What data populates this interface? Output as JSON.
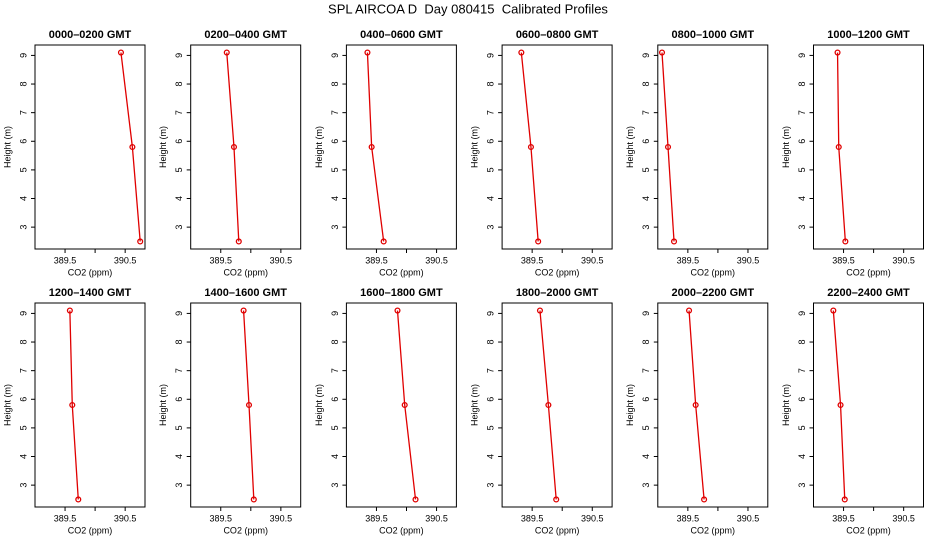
{
  "title": "SPL AIRCOA D  Day 080415  Calibrated Profiles",
  "chart_data": [
    {
      "type": "line",
      "title": "0000–0200 GMT",
      "xlabel": "CO2 (ppm)",
      "ylabel": "Height (m)",
      "x": [
        390.43,
        390.62,
        390.75
      ],
      "values": [
        9.1,
        5.8,
        2.5
      ],
      "color": "#e00000",
      "xlim": [
        389.0,
        390.83
      ],
      "ylim": [
        2.236,
        9.364
      ],
      "xticks": [
        389.5,
        {
          "value": 390.0,
          "label": null
        },
        390.5
      ],
      "yticks": [
        3,
        4,
        5,
        6,
        7,
        8,
        9
      ]
    },
    {
      "type": "line",
      "title": "0200–0400 GMT",
      "xlabel": "CO2 (ppm)",
      "ylabel": "Height (m)",
      "x": [
        389.6,
        389.72,
        389.8
      ],
      "values": [
        9.1,
        5.8,
        2.5
      ],
      "color": "#e00000",
      "xlim": [
        389.0,
        390.83
      ],
      "ylim": [
        2.236,
        9.364
      ],
      "xticks": [
        389.5,
        {
          "value": 390.0,
          "label": null
        },
        390.5
      ],
      "yticks": [
        3,
        4,
        5,
        6,
        7,
        8,
        9
      ]
    },
    {
      "type": "line",
      "title": "0400–0600 GMT",
      "xlabel": "CO2 (ppm)",
      "ylabel": "Height (m)",
      "x": [
        389.35,
        389.42,
        389.62
      ],
      "values": [
        9.1,
        5.8,
        2.5
      ],
      "color": "#e00000",
      "xlim": [
        389.0,
        390.83
      ],
      "ylim": [
        2.236,
        9.364
      ],
      "xticks": [
        389.5,
        {
          "value": 390.0,
          "label": null
        },
        390.5
      ],
      "yticks": [
        3,
        4,
        5,
        6,
        7,
        8,
        9
      ]
    },
    {
      "type": "line",
      "title": "0600–0800 GMT",
      "xlabel": "CO2 (ppm)",
      "ylabel": "Height (m)",
      "x": [
        389.32,
        389.48,
        389.6
      ],
      "values": [
        9.1,
        5.8,
        2.5
      ],
      "color": "#e00000",
      "xlim": [
        389.0,
        390.83
      ],
      "ylim": [
        2.236,
        9.364
      ],
      "xticks": [
        389.5,
        {
          "value": 390.0,
          "label": null
        },
        390.5
      ],
      "yticks": [
        3,
        4,
        5,
        6,
        7,
        8,
        9
      ]
    },
    {
      "type": "line",
      "title": "0800–1000 GMT",
      "xlabel": "CO2 (ppm)",
      "ylabel": "Height (m)",
      "x": [
        389.07,
        389.17,
        389.27
      ],
      "values": [
        9.1,
        5.8,
        2.5
      ],
      "color": "#e00000",
      "xlim": [
        389.0,
        390.83
      ],
      "ylim": [
        2.236,
        9.364
      ],
      "xticks": [
        389.5,
        {
          "value": 390.0,
          "label": null
        },
        390.5
      ],
      "yticks": [
        3,
        4,
        5,
        6,
        7,
        8,
        9
      ]
    },
    {
      "type": "line",
      "title": "1000–1200 GMT",
      "xlabel": "CO2 (ppm)",
      "ylabel": "Height (m)",
      "x": [
        389.4,
        389.42,
        389.53
      ],
      "values": [
        9.1,
        5.8,
        2.5
      ],
      "color": "#e00000",
      "xlim": [
        389.0,
        390.83
      ],
      "ylim": [
        2.236,
        9.364
      ],
      "xticks": [
        389.5,
        {
          "value": 390.0,
          "label": null
        },
        390.5
      ],
      "yticks": [
        3,
        4,
        5,
        6,
        7,
        8,
        9
      ]
    },
    {
      "type": "line",
      "title": "1200–1400 GMT",
      "xlabel": "CO2 (ppm)",
      "ylabel": "Height (m)",
      "x": [
        389.58,
        389.62,
        389.72
      ],
      "values": [
        9.1,
        5.8,
        2.5
      ],
      "color": "#e00000",
      "xlim": [
        389.0,
        390.83
      ],
      "ylim": [
        2.236,
        9.364
      ],
      "xticks": [
        389.5,
        {
          "value": 390.0,
          "label": null
        },
        390.5
      ],
      "yticks": [
        3,
        4,
        5,
        6,
        7,
        8,
        9
      ]
    },
    {
      "type": "line",
      "title": "1400–1600 GMT",
      "xlabel": "CO2 (ppm)",
      "ylabel": "Height (m)",
      "x": [
        389.88,
        389.97,
        390.05
      ],
      "values": [
        9.1,
        5.8,
        2.5
      ],
      "color": "#e00000",
      "xlim": [
        389.0,
        390.83
      ],
      "ylim": [
        2.236,
        9.364
      ],
      "xticks": [
        389.5,
        {
          "value": 390.0,
          "label": null
        },
        390.5
      ],
      "yticks": [
        3,
        4,
        5,
        6,
        7,
        8,
        9
      ]
    },
    {
      "type": "line",
      "title": "1600–1800 GMT",
      "xlabel": "CO2 (ppm)",
      "ylabel": "Height (m)",
      "x": [
        389.85,
        389.97,
        390.15
      ],
      "values": [
        9.1,
        5.8,
        2.5
      ],
      "color": "#e00000",
      "xlim": [
        389.0,
        390.83
      ],
      "ylim": [
        2.236,
        9.364
      ],
      "xticks": [
        389.5,
        {
          "value": 390.0,
          "label": null
        },
        390.5
      ],
      "yticks": [
        3,
        4,
        5,
        6,
        7,
        8,
        9
      ]
    },
    {
      "type": "line",
      "title": "1800–2000 GMT",
      "xlabel": "CO2 (ppm)",
      "ylabel": "Height (m)",
      "x": [
        389.63,
        389.77,
        389.9
      ],
      "values": [
        9.1,
        5.8,
        2.5
      ],
      "color": "#e00000",
      "xlim": [
        389.0,
        390.83
      ],
      "ylim": [
        2.236,
        9.364
      ],
      "xticks": [
        389.5,
        {
          "value": 390.0,
          "label": null
        },
        390.5
      ],
      "yticks": [
        3,
        4,
        5,
        6,
        7,
        8,
        9
      ]
    },
    {
      "type": "line",
      "title": "2000–2200 GMT",
      "xlabel": "CO2 (ppm)",
      "ylabel": "Height (m)",
      "x": [
        389.52,
        389.63,
        389.77
      ],
      "values": [
        9.1,
        5.8,
        2.5
      ],
      "color": "#e00000",
      "xlim": [
        389.0,
        390.83
      ],
      "ylim": [
        2.236,
        9.364
      ],
      "xticks": [
        389.5,
        {
          "value": 390.0,
          "label": null
        },
        390.5
      ],
      "yticks": [
        3,
        4,
        5,
        6,
        7,
        8,
        9
      ]
    },
    {
      "type": "line",
      "title": "2200–2400 GMT",
      "xlabel": "CO2 (ppm)",
      "ylabel": "Height (m)",
      "x": [
        389.33,
        389.45,
        389.52
      ],
      "values": [
        9.1,
        5.8,
        2.5
      ],
      "color": "#e00000",
      "xlim": [
        389.0,
        390.83
      ],
      "ylim": [
        2.236,
        9.364
      ],
      "xticks": [
        389.5,
        {
          "value": 390.0,
          "label": null
        },
        390.5
      ],
      "yticks": [
        3,
        4,
        5,
        6,
        7,
        8,
        9
      ]
    }
  ]
}
